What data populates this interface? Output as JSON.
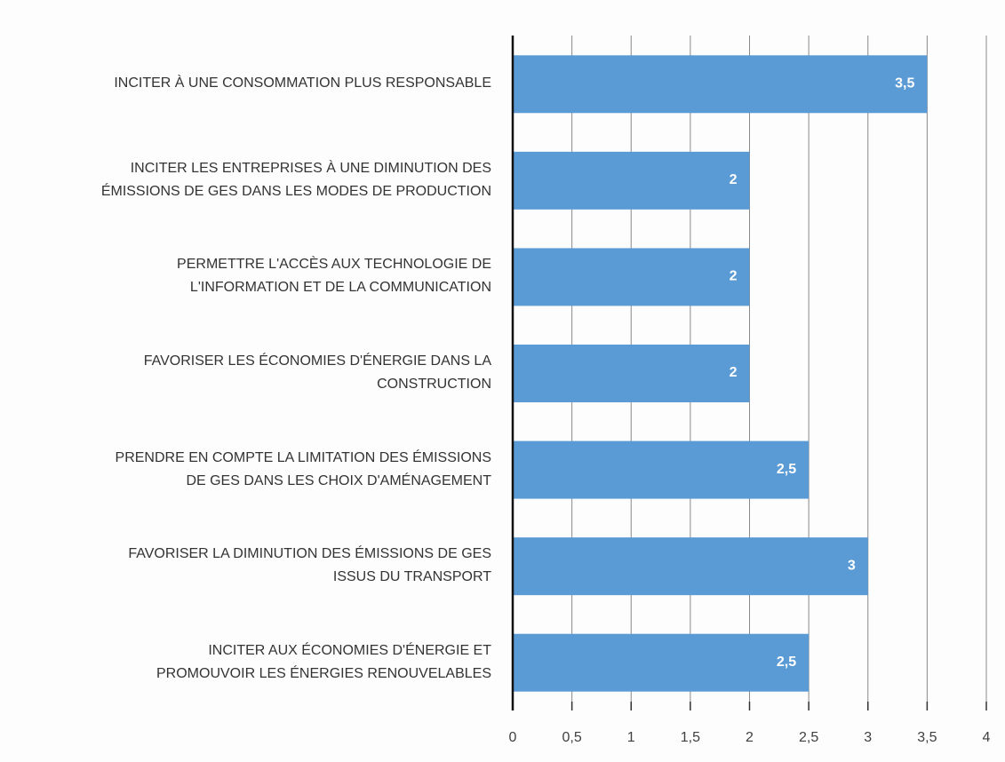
{
  "chart_data": {
    "type": "hbar",
    "categories": [
      "INCITER À UNE CONSOMMATION PLUS RESPONSABLE",
      "INCITER LES ENTREPRISES À UNE DIMINUTION DES\nÉMISSIONS DE GES DANS LES MODES DE PRODUCTION",
      "PERMETTRE L'ACCÈS AUX TECHNOLOGIE DE\nL'INFORMATION ET DE LA COMMUNICATION",
      "FAVORISER LES ÉCONOMIES D'ÉNERGIE DANS LA\nCONSTRUCTION",
      "PRENDRE EN COMPTE LA LIMITATION DES ÉMISSIONS\nDE GES DANS LES CHOIX D'AMÉNAGEMENT",
      "FAVORISER LA DIMINUTION DES ÉMISSIONS DE GES\nISSUS DU TRANSPORT",
      "INCITER AUX ÉCONOMIES D'ÉNERGIE ET\nPROMOUVOIR LES ÉNERGIES RENOUVELABLES"
    ],
    "values": [
      3.5,
      2,
      2,
      2,
      2.5,
      3,
      2.5
    ],
    "value_labels": [
      "3,5",
      "2",
      "2",
      "2",
      "2,5",
      "3",
      "2,5"
    ],
    "color": "#5b9bd5",
    "xlim": [
      0,
      4
    ],
    "xticks": [
      0,
      {
        "value": 0.5,
        "label": "0,5"
      },
      1,
      {
        "value": 1.5,
        "label": "1,5"
      },
      2,
      {
        "value": 2.5,
        "label": "2,5"
      },
      3,
      {
        "value": 3.5,
        "label": "3,5"
      },
      4
    ],
    "grid": true
  }
}
